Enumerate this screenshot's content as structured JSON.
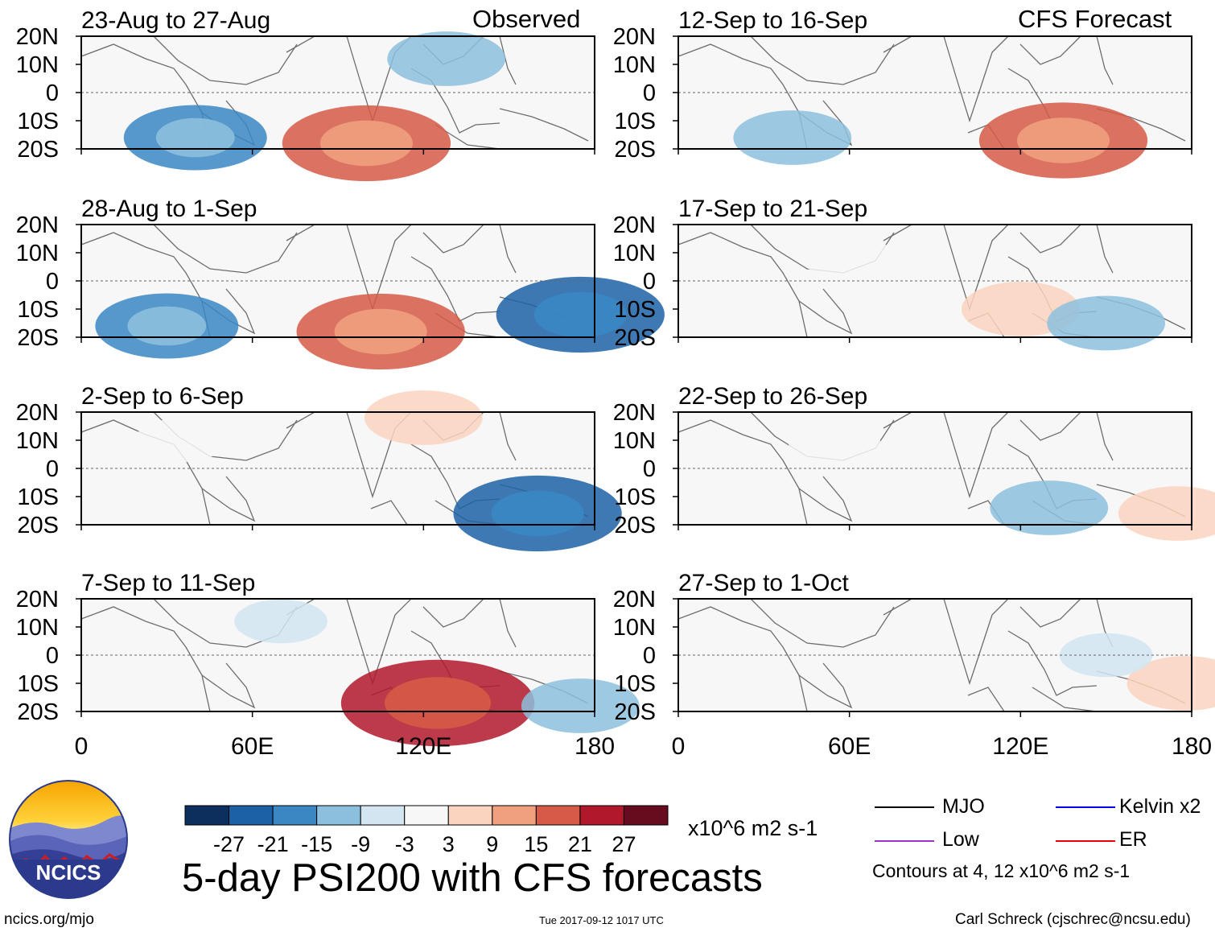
{
  "header": {
    "observed_label": "Observed",
    "forecast_label": "CFS Forecast"
  },
  "chart_data": {
    "type": "heatmap",
    "title": "5-day PSI200 with CFS forecasts",
    "variable": "PSI200 anomaly",
    "units": "x10^6 m2 s-1",
    "x_ticks": [
      "0",
      "60E",
      "120E",
      "180"
    ],
    "y_ticks": [
      "20N",
      "10N",
      "0",
      "10S",
      "20S"
    ],
    "xlim": [
      0,
      180
    ],
    "ylim": [
      -20,
      20
    ],
    "panels": [
      {
        "column": "observed",
        "period": "23-Aug to 27-Aug",
        "features": [
          {
            "lon": 100,
            "lat": -18,
            "value": 21
          },
          {
            "lon": 128,
            "lat": 12,
            "value": -9
          },
          {
            "lon": 40,
            "lat": -16,
            "value": -15
          }
        ]
      },
      {
        "column": "observed",
        "period": "28-Aug to 1-Sep",
        "features": [
          {
            "lon": 105,
            "lat": -18,
            "value": 21
          },
          {
            "lon": 175,
            "lat": -12,
            "value": -21
          },
          {
            "lon": 30,
            "lat": -16,
            "value": -15
          }
        ]
      },
      {
        "column": "observed",
        "period": "2-Sep to 6-Sep",
        "features": [
          {
            "lon": 160,
            "lat": -16,
            "value": -21
          },
          {
            "lon": 120,
            "lat": 18,
            "value": 9
          },
          {
            "lon": 35,
            "lat": 10,
            "value": 3
          }
        ]
      },
      {
        "column": "observed",
        "period": "7-Sep to 11-Sep",
        "features": [
          {
            "lon": 125,
            "lat": -17,
            "value": 27
          },
          {
            "lon": 70,
            "lat": 12,
            "value": -3
          },
          {
            "lon": 175,
            "lat": -18,
            "value": -9
          }
        ]
      },
      {
        "column": "forecast",
        "period": "12-Sep to 16-Sep",
        "features": [
          {
            "lon": 135,
            "lat": -17,
            "value": 21
          },
          {
            "lon": 40,
            "lat": -16,
            "value": -9
          }
        ]
      },
      {
        "column": "forecast",
        "period": "17-Sep to 21-Sep",
        "features": [
          {
            "lon": 120,
            "lat": -10,
            "value": 9
          },
          {
            "lon": 150,
            "lat": -15,
            "value": -9
          },
          {
            "lon": 60,
            "lat": 8,
            "value": 3
          }
        ]
      },
      {
        "column": "forecast",
        "period": "22-Sep to 26-Sep",
        "features": [
          {
            "lon": 175,
            "lat": -16,
            "value": 9
          },
          {
            "lon": 130,
            "lat": -14,
            "value": -9
          },
          {
            "lon": 55,
            "lat": 8,
            "value": 3
          }
        ]
      },
      {
        "column": "forecast",
        "period": "27-Sep to 1-Oct",
        "features": [
          {
            "lon": 80,
            "lat": -10,
            "value": 3
          },
          {
            "lon": 178,
            "lat": -10,
            "value": 9
          },
          {
            "lon": 150,
            "lat": 0,
            "value": -3
          }
        ]
      }
    ],
    "colorbar": {
      "levels": [
        "-27",
        "-21",
        "-15",
        "-9",
        "-3",
        "3",
        "9",
        "15",
        "21",
        "27"
      ],
      "colors": [
        "#0d2f5e",
        "#1c61a6",
        "#3a87c4",
        "#8cbfdd",
        "#d2e5f1",
        "#f7f7f7",
        "#fbd4bf",
        "#f0a07f",
        "#d65a47",
        "#b2182b",
        "#670b1e"
      ],
      "units": "x10^6 m2 s-1"
    },
    "legend": [
      {
        "name": "MJO",
        "color": "#000000"
      },
      {
        "name": "Kelvin x2",
        "color": "#0000ee"
      },
      {
        "name": "Low",
        "color": "#9a32cd"
      },
      {
        "name": "ER",
        "color": "#ee0000"
      }
    ],
    "contour_note": "Contours at 4, 12 x10^6 m2 s-1"
  },
  "footer": {
    "logo_text": "NCICS",
    "url": "ncics.org/mjo",
    "timestamp": "Tue 2017-09-12 1017 UTC",
    "credit": "Carl Schreck (cjschrec@ncsu.edu)"
  }
}
